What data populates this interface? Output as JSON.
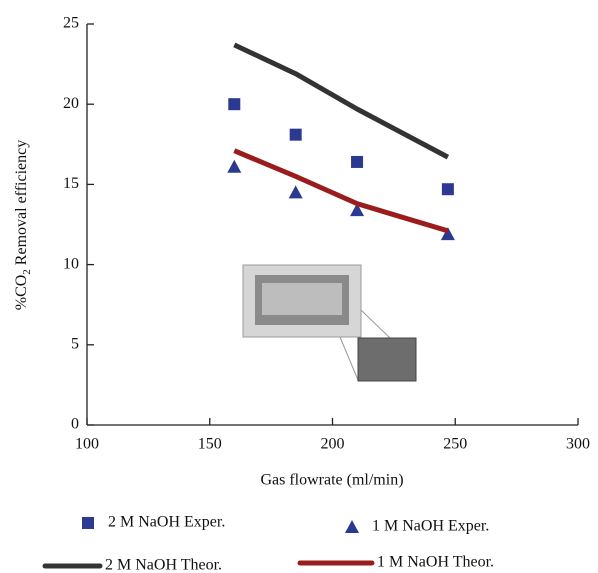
{
  "chart_data": {
    "type": "scatter-line",
    "xlabel": "Gas flowrate (ml/min)",
    "ylabel": [
      "%CO",
      "2",
      " Removal efficiency"
    ],
    "x": [
      160,
      185,
      210,
      247
    ],
    "xlim": [
      100,
      300
    ],
    "xticks": [
      100,
      150,
      200,
      250,
      300
    ],
    "ylim": [
      0,
      25
    ],
    "yticks": [
      0,
      5,
      10,
      15,
      20,
      25
    ],
    "series": [
      {
        "name": "2 M NaOH Exper.",
        "color": "#2b3990",
        "marker": "square",
        "values": [
          20.0,
          18.1,
          16.4,
          14.7
        ]
      },
      {
        "name": "1 M NaOH Exper.",
        "color": "#2b3990",
        "marker": "triangle",
        "values": [
          16.1,
          14.5,
          13.4,
          11.9
        ]
      },
      {
        "name": "2 M NaOH Theor.",
        "color": "#333333",
        "marker": "line",
        "values": [
          23.7,
          21.9,
          19.7,
          16.7
        ]
      },
      {
        "name": "1 M NaOH Theor.",
        "color": "#9b1c1c",
        "marker": "line",
        "values": [
          17.1,
          15.5,
          13.8,
          12.1
        ]
      }
    ]
  }
}
